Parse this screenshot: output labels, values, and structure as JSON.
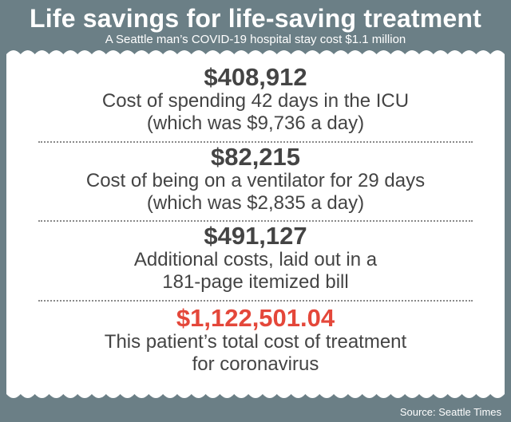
{
  "header": {
    "title": "Life savings for life-saving treatment",
    "subtitle": "A Seattle man’s COVID-19 hospital stay cost $1.1 million"
  },
  "items": [
    {
      "amount": "$408,912",
      "line1": "Cost of spending 42 days in the ICU",
      "line2": "(which was $9,736 a day)"
    },
    {
      "amount": "$82,215",
      "line1": "Cost of being on a ventilator for 29 days",
      "line2": "(which was $2,835 a day)"
    },
    {
      "amount": "$491,127",
      "line1": "Additional costs, laid out in a",
      "line2": "181-page itemized bill"
    },
    {
      "amount": "$1,122,501.04",
      "line1": "This patient’s total cost of treatment",
      "line2": "for coronavirus"
    }
  ],
  "footer": {
    "source": "Source: Seattle Times"
  },
  "colors": {
    "background": "#6b7f86",
    "paper": "#ffffff",
    "text": "#444444",
    "total_accent": "#e4473a"
  }
}
